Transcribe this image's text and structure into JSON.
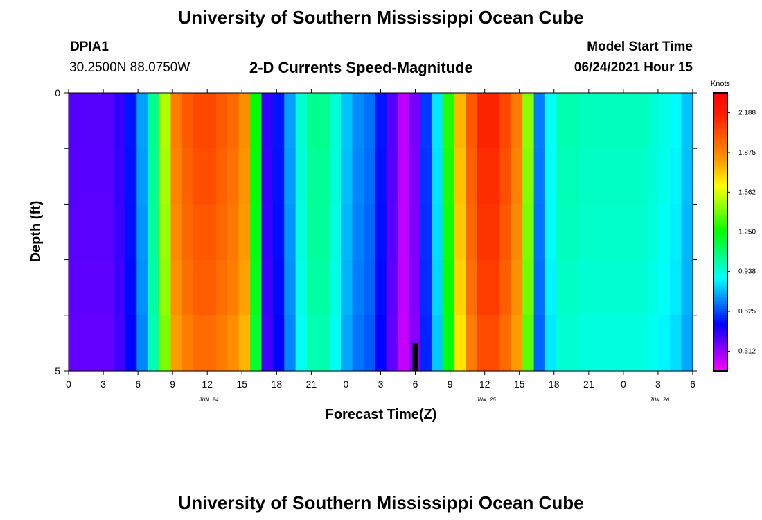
{
  "header": {
    "title": "University of Southern Mississippi Ocean Cube",
    "station_id": "DPIA1",
    "station_coords": "30.2500N  88.0750W",
    "plot_title": "2-D Currents Speed-Magnitude",
    "model_start_label": "Model Start Time",
    "model_start_value": "06/24/2021 Hour 15"
  },
  "footer": {
    "title": "University of Southern Mississippi Ocean Cube"
  },
  "chart_data": {
    "type": "heatmap",
    "title": "2-D Currents Speed-Magnitude",
    "xlabel": "Forecast Time(Z)",
    "ylabel": "Depth (ft)",
    "x_hours": [
      0,
      1,
      2,
      3,
      4,
      5,
      6,
      7,
      8,
      9,
      10,
      11,
      12,
      13,
      14,
      15,
      16,
      17,
      18,
      19,
      20,
      21,
      22,
      23,
      24,
      25,
      26,
      27,
      28,
      29,
      30,
      31,
      32,
      33,
      34,
      35,
      36,
      37,
      38,
      39,
      40,
      41,
      42,
      43,
      44,
      45,
      46,
      47,
      48,
      49,
      50,
      51,
      52,
      53,
      54
    ],
    "x_tick_labels": [
      "0",
      "3",
      "6",
      "9",
      "12",
      "15",
      "18",
      "21",
      "0",
      "3",
      "6",
      "9",
      "12",
      "15",
      "18",
      "21",
      "0",
      "3",
      "6"
    ],
    "date_labels": [
      {
        "label": "JUN 24",
        "hour": 12
      },
      {
        "label": "JUN 25",
        "hour": 36
      },
      {
        "label": "JUN 26",
        "hour": 51
      }
    ],
    "ylim": [
      0,
      5
    ],
    "y_tick_labels": [
      "0",
      "5"
    ],
    "depth_layers": [
      0,
      1,
      2,
      3,
      4,
      5
    ],
    "speed_surface_knots": [
      0.4,
      0.4,
      0.4,
      0.4,
      0.45,
      0.55,
      0.75,
      1.05,
      1.5,
      1.9,
      2.0,
      2.05,
      2.05,
      2.0,
      1.95,
      1.85,
      1.25,
      0.45,
      0.55,
      0.75,
      0.95,
      1.05,
      1.05,
      0.95,
      0.8,
      0.72,
      0.68,
      0.55,
      0.4,
      0.25,
      0.35,
      0.6,
      0.85,
      1.3,
      1.75,
      2.0,
      2.15,
      2.15,
      2.05,
      1.9,
      1.45,
      0.7,
      0.9,
      1.0,
      1.0,
      0.98,
      0.98,
      0.98,
      0.98,
      0.98,
      0.98,
      0.95,
      0.92,
      0.88,
      0.8
    ],
    "depth_scale": [
      1.0,
      0.99,
      0.98,
      0.97,
      0.95,
      0.92
    ],
    "marker": {
      "hour": 30,
      "depth_from": 4.5,
      "depth_to": 5
    },
    "colorbar": {
      "label": "Knots",
      "ticks": [
        "0.312",
        "0.625",
        "0.938",
        "1.250",
        "1.562",
        "1.875",
        "2.188"
      ],
      "range": [
        0.156,
        2.344
      ]
    },
    "colors": {
      "scale": [
        "#ff00ff",
        "#8000ff",
        "#0000ff",
        "#0080ff",
        "#00ffff",
        "#00ff80",
        "#00ff00",
        "#80ff00",
        "#ffff00",
        "#ffa000",
        "#ff6000",
        "#ff2000",
        "#ff0000"
      ]
    }
  }
}
